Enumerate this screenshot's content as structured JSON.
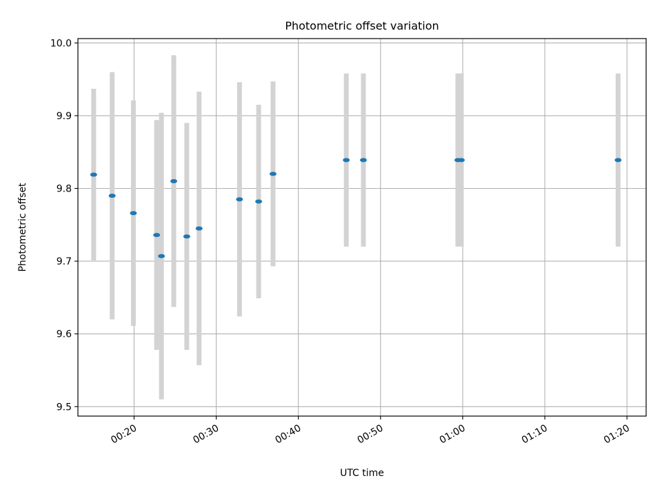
{
  "chart_data": {
    "type": "scatter",
    "title": "Photometric offset variation",
    "xlabel": "UTC time",
    "ylabel": "Photometric offset",
    "x_unit": "HH:MM",
    "xlim": [
      "00:13:10",
      "01:22:20"
    ],
    "ylim": [
      9.487,
      10.006
    ],
    "x_ticks": [
      "00:20",
      "00:30",
      "00:40",
      "00:50",
      "01:00",
      "01:10",
      "01:20"
    ],
    "y_ticks": [
      "9.5",
      "9.6",
      "9.7",
      "9.8",
      "9.9",
      "10.0"
    ],
    "grid": true,
    "legend": null,
    "colors": {
      "point": "#1f77b4",
      "errorbar": "#d3d3d3",
      "grid": "#b0b0b0"
    },
    "series": [
      {
        "points": [
          {
            "x": "00:15:05",
            "y": 9.819,
            "err": 0.118
          },
          {
            "x": "00:17:20",
            "y": 9.79,
            "err": 0.17
          },
          {
            "x": "00:19:55",
            "y": 9.766,
            "err": 0.155
          },
          {
            "x": "00:22:45",
            "y": 9.736,
            "err": 0.158
          },
          {
            "x": "00:23:20",
            "y": 9.707,
            "err": 0.197
          },
          {
            "x": "00:24:50",
            "y": 9.81,
            "err": 0.173
          },
          {
            "x": "00:26:25",
            "y": 9.734,
            "err": 0.156
          },
          {
            "x": "00:27:55",
            "y": 9.745,
            "err": 0.188
          },
          {
            "x": "00:32:50",
            "y": 9.785,
            "err": 0.161
          },
          {
            "x": "00:35:10",
            "y": 9.782,
            "err": 0.133
          },
          {
            "x": "00:36:55",
            "y": 9.82,
            "err": 0.127
          },
          {
            "x": "00:45:50",
            "y": 9.839,
            "err": 0.119
          },
          {
            "x": "00:47:55",
            "y": 9.839,
            "err": 0.119
          },
          {
            "x": "00:59:25",
            "y": 9.839,
            "err": 0.119
          },
          {
            "x": "00:59:50",
            "y": 9.839,
            "err": 0.119
          },
          {
            "x": "01:18:55",
            "y": 9.839,
            "err": 0.119
          }
        ]
      }
    ]
  }
}
